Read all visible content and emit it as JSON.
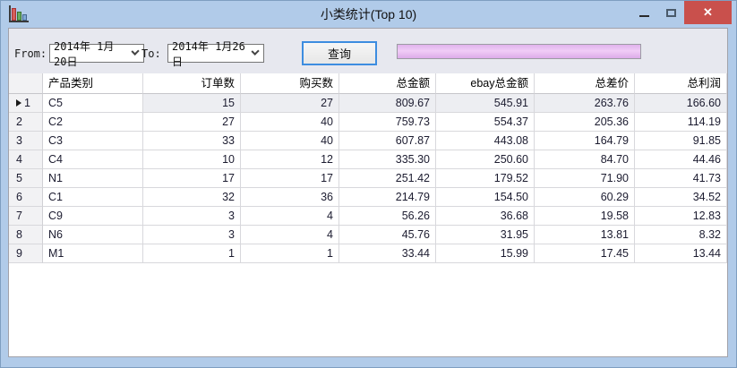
{
  "window": {
    "title": "小类统计(Top 10)",
    "icon": "bar-chart",
    "controls": {
      "minimize": "minimize",
      "maximize": "maximize",
      "close": "✕"
    }
  },
  "toolbar": {
    "from_label": "From:",
    "from_date": "2014年 1月20日",
    "to_label": "To:",
    "to_date": "2014年 1月26日",
    "query_button": "查询",
    "progress_percent": 100
  },
  "colors": {
    "titlebar": "#b1cbe9",
    "close_button": "#c9504c",
    "toolbar_bg": "#e7e8ef",
    "progress_fill": "#e4b8ef",
    "selected_row_bg": "#edeef2",
    "query_button_border": "#3d8de0"
  },
  "grid": {
    "columns": [
      "产品类别",
      "订单数",
      "购买数",
      "总金额",
      "ebay总金额",
      "总差价",
      "总利润"
    ],
    "rows": [
      {
        "num": "1",
        "selected": true,
        "cells": [
          "C5",
          "15",
          "27",
          "809.67",
          "545.91",
          "263.76",
          "166.60"
        ]
      },
      {
        "num": "2",
        "selected": false,
        "cells": [
          "C2",
          "27",
          "40",
          "759.73",
          "554.37",
          "205.36",
          "114.19"
        ]
      },
      {
        "num": "3",
        "selected": false,
        "cells": [
          "C3",
          "33",
          "40",
          "607.87",
          "443.08",
          "164.79",
          "91.85"
        ]
      },
      {
        "num": "4",
        "selected": false,
        "cells": [
          "C4",
          "10",
          "12",
          "335.30",
          "250.60",
          "84.70",
          "44.46"
        ]
      },
      {
        "num": "5",
        "selected": false,
        "cells": [
          "N1",
          "17",
          "17",
          "251.42",
          "179.52",
          "71.90",
          "41.73"
        ]
      },
      {
        "num": "6",
        "selected": false,
        "cells": [
          "C1",
          "32",
          "36",
          "214.79",
          "154.50",
          "60.29",
          "34.52"
        ]
      },
      {
        "num": "7",
        "selected": false,
        "cells": [
          "C9",
          "3",
          "4",
          "56.26",
          "36.68",
          "19.58",
          "12.83"
        ]
      },
      {
        "num": "8",
        "selected": false,
        "cells": [
          "N6",
          "3",
          "4",
          "45.76",
          "31.95",
          "13.81",
          "8.32"
        ]
      },
      {
        "num": "9",
        "selected": false,
        "cells": [
          "M1",
          "1",
          "1",
          "33.44",
          "15.99",
          "17.45",
          "13.44"
        ]
      }
    ]
  }
}
